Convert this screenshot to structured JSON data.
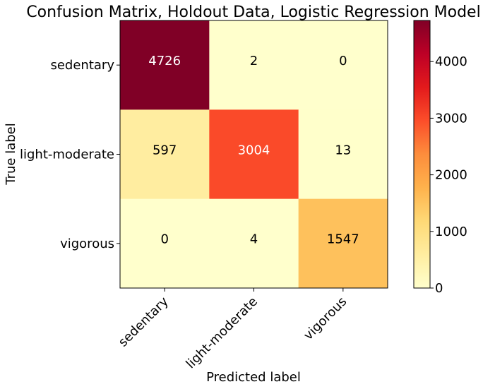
{
  "chart_data": {
    "type": "heatmap",
    "title": "Confusion Matrix, Holdout Data, Logistic Regression Model",
    "xlabel": "Predicted label",
    "ylabel": "True label",
    "x_categories": [
      "sedentary",
      "light-moderate",
      "vigorous"
    ],
    "y_categories": [
      "sedentary",
      "light-moderate",
      "vigorous"
    ],
    "values": [
      [
        4726,
        2,
        0
      ],
      [
        597,
        3004,
        13
      ],
      [
        0,
        4,
        1547
      ]
    ],
    "colormap": "YlOrRd",
    "color_range": [
      0,
      4726
    ],
    "colorbar_ticks": [
      0,
      1000,
      2000,
      3000,
      4000
    ],
    "text_color_dark": "#000000",
    "text_color_light": "#ffffff",
    "grid": false
  }
}
